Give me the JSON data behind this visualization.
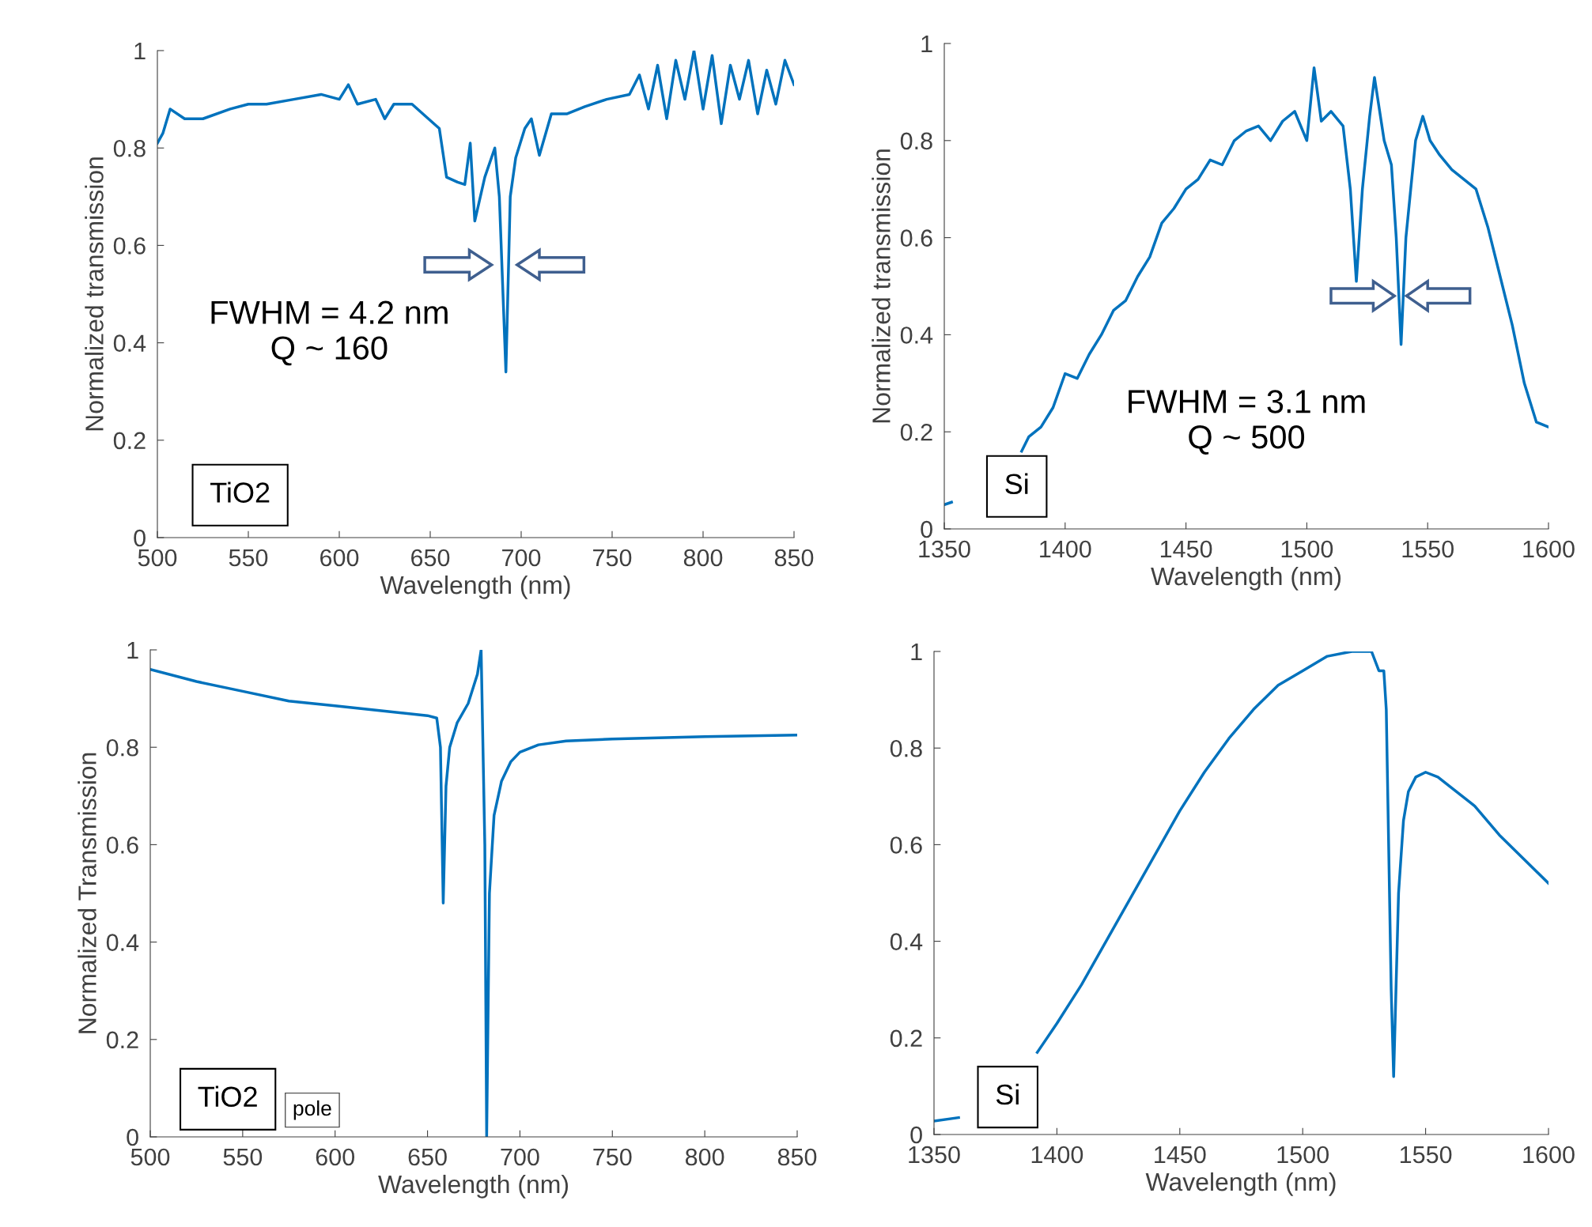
{
  "chart_data": [
    {
      "type": "line",
      "xlabel": "Wavelength (nm)",
      "ylabel": "Normalized transmission",
      "xlim": [
        500,
        850
      ],
      "ylim": [
        0,
        1
      ],
      "xticks": [
        500,
        550,
        600,
        650,
        700,
        750,
        800,
        850
      ],
      "yticks": [
        0,
        0.2,
        0.4,
        0.6,
        0.8,
        1
      ],
      "grid": false,
      "legend": false,
      "annotations": [
        "FWHM = 4.2 nm\nQ ~ 160",
        "TiO2"
      ],
      "series": [
        {
          "color": "#0072bd",
          "x": [
            500,
            503,
            507,
            515,
            525,
            540,
            550,
            560,
            575,
            590,
            600,
            605,
            610,
            620,
            625,
            630,
            640,
            649,
            655,
            659,
            665,
            669,
            672,
            674.5,
            680,
            685.5,
            688,
            691.6,
            694,
            697,
            702,
            705.6,
            710,
            716.6,
            725,
            735,
            747,
            759.5,
            765,
            770,
            775,
            780,
            785,
            790,
            795,
            800,
            805,
            810,
            815,
            820,
            825,
            830,
            835,
            840,
            845,
            850
          ],
          "values": [
            0.81,
            0.83,
            0.88,
            0.86,
            0.86,
            0.88,
            0.89,
            0.89,
            0.9,
            0.91,
            0.9,
            0.93,
            0.89,
            0.9,
            0.86,
            0.89,
            0.89,
            0.86,
            0.84,
            0.74,
            0.73,
            0.725,
            0.81,
            0.65,
            0.74,
            0.8,
            0.7,
            0.34,
            0.7,
            0.78,
            0.84,
            0.86,
            0.785,
            0.87,
            0.87,
            0.885,
            0.9,
            0.91,
            0.95,
            0.88,
            0.97,
            0.86,
            0.98,
            0.9,
            1.0,
            0.88,
            0.99,
            0.85,
            0.97,
            0.9,
            0.98,
            0.87,
            0.96,
            0.89,
            0.98,
            0.93
          ]
        }
      ]
    },
    {
      "type": "line",
      "xlabel": "Wavelength (nm)",
      "ylabel": "Normalized transmission",
      "xlim": [
        1350,
        1600
      ],
      "ylim": [
        0,
        1
      ],
      "xticks": [
        1350,
        1400,
        1450,
        1500,
        1550,
        1600
      ],
      "yticks": [
        0,
        0.2,
        0.4,
        0.6,
        0.8,
        1
      ],
      "grid": false,
      "legend": false,
      "annotations": [
        "FWHM = 3.1 nm\nQ ~ 500",
        "Si"
      ],
      "series": [
        {
          "color": "#0072bd",
          "x": [
            1350,
            1353,
            1365,
            1382,
            1385,
            1390,
            1395,
            1400,
            1405,
            1410,
            1415,
            1420,
            1425,
            1430,
            1435,
            1440,
            1445,
            1450,
            1455,
            1460,
            1465,
            1470,
            1475,
            1480,
            1485,
            1490,
            1495,
            1500,
            1503,
            1506,
            1510,
            1515,
            1518,
            1520.5,
            1523,
            1526,
            1528,
            1532,
            1535,
            1537,
            1539,
            1541,
            1543,
            1545,
            1548,
            1551,
            1555,
            1560,
            1565,
            1570,
            1575,
            1580,
            1585,
            1590,
            1595,
            1600
          ],
          "values": [
            0.05,
            0.055,
            null,
            0.16,
            0.19,
            0.21,
            0.25,
            0.32,
            0.31,
            0.36,
            0.4,
            0.45,
            0.47,
            0.52,
            0.56,
            0.63,
            0.66,
            0.7,
            0.72,
            0.76,
            0.75,
            0.8,
            0.82,
            0.83,
            0.8,
            0.84,
            0.86,
            0.8,
            0.95,
            0.84,
            0.86,
            0.83,
            0.7,
            0.51,
            0.7,
            0.85,
            0.93,
            0.8,
            0.75,
            0.6,
            0.38,
            0.6,
            0.7,
            0.8,
            0.85,
            0.8,
            0.77,
            0.74,
            0.72,
            0.7,
            0.62,
            0.52,
            0.42,
            0.3,
            0.22,
            0.21
          ]
        }
      ]
    },
    {
      "type": "line",
      "xlabel": "Wavelength (nm)",
      "ylabel": "Normalized Transmission",
      "xlim": [
        500,
        850
      ],
      "ylim": [
        0,
        1
      ],
      "xticks": [
        500,
        550,
        600,
        650,
        700,
        750,
        800,
        850
      ],
      "yticks": [
        0,
        0.2,
        0.4,
        0.6,
        0.8,
        1
      ],
      "grid": false,
      "legend": false,
      "annotations": [
        "pole",
        "TiO2"
      ],
      "series": [
        {
          "color": "#0072bd",
          "x": [
            500,
            525,
            550,
            575,
            600,
            625,
            650,
            655,
            657,
            658.5,
            660,
            662,
            666,
            672,
            677,
            679,
            681,
            682,
            683.5,
            686,
            690,
            695,
            700,
            710,
            725,
            750,
            800,
            850
          ],
          "values": [
            0.96,
            0.935,
            0.915,
            0.895,
            0.885,
            0.875,
            0.865,
            0.86,
            0.8,
            0.48,
            0.72,
            0.8,
            0.85,
            0.89,
            0.95,
            1.0,
            0.6,
            0.0,
            0.5,
            0.66,
            0.73,
            0.77,
            0.79,
            0.805,
            0.813,
            0.817,
            0.822,
            0.825
          ]
        }
      ]
    },
    {
      "type": "line",
      "xlabel": "Wavelength (nm)",
      "xlim": [
        1350,
        1600
      ],
      "ylim": [
        0,
        1
      ],
      "xticks": [
        1350,
        1400,
        1450,
        1500,
        1550,
        1600
      ],
      "yticks": [
        0,
        0.2,
        0.4,
        0.6,
        0.8,
        1
      ],
      "grid": false,
      "legend": false,
      "annotations": [
        "Si"
      ],
      "series": [
        {
          "color": "#0072bd",
          "x": [
            1350,
            1360,
            1375,
            1392,
            1400,
            1410,
            1420,
            1430,
            1440,
            1450,
            1460,
            1470,
            1480,
            1490,
            1500,
            1510,
            1520,
            1528,
            1531,
            1533,
            1534,
            1536,
            1537,
            1539,
            1541,
            1543,
            1546,
            1550,
            1555,
            1560,
            1570,
            1580,
            1590,
            1600
          ],
          "values": [
            0.028,
            0.035,
            null,
            0.17,
            0.23,
            0.31,
            0.4,
            0.49,
            0.58,
            0.67,
            0.75,
            0.82,
            0.88,
            0.93,
            0.96,
            0.99,
            1.0,
            1.0,
            0.96,
            0.96,
            0.88,
            0.3,
            0.12,
            0.5,
            0.65,
            0.71,
            0.74,
            0.75,
            0.74,
            0.72,
            0.68,
            0.62,
            0.57,
            0.52
          ]
        }
      ]
    }
  ]
}
